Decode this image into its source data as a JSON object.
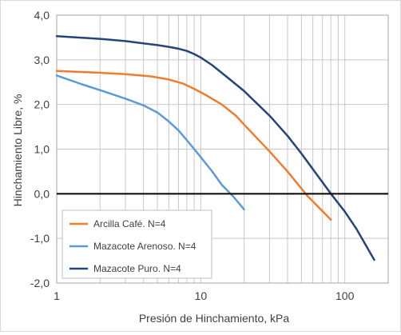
{
  "chart_data": {
    "type": "line",
    "xlabel": "Presión de Hinchamiento, kPa",
    "ylabel": "Hinchamiento Libre, %",
    "xscale": "log",
    "xlim": [
      1,
      200
    ],
    "ylim": [
      -2.0,
      4.0
    ],
    "xticks": [
      1,
      10,
      100
    ],
    "xtick_labels": [
      "1",
      "10",
      "100"
    ],
    "yticks": [
      -2.0,
      -1.0,
      0.0,
      1.0,
      2.0,
      3.0,
      4.0
    ],
    "ytick_labels": [
      "-2,0",
      "-1,0",
      "0,0",
      "1,0",
      "2,0",
      "3,0",
      "4,0"
    ],
    "grid": true,
    "zero_line": true,
    "legend_position": "bottom-left",
    "series": [
      {
        "name": "Arcilla Café. N=4",
        "color": "#ed7d31",
        "x": [
          1,
          2,
          3,
          4.5,
          6,
          7.5,
          9,
          11,
          14,
          17.5,
          20,
          30,
          40,
          55,
          80
        ],
        "y": [
          2.75,
          2.71,
          2.68,
          2.63,
          2.56,
          2.47,
          2.35,
          2.2,
          2.0,
          1.75,
          1.55,
          0.95,
          0.5,
          -0.05,
          -0.58
        ]
      },
      {
        "name": "Mazacote Arenoso. N=4",
        "color": "#5b9bd5",
        "x": [
          1,
          1.5,
          2,
          3,
          4,
          5,
          6,
          7,
          8,
          9,
          10,
          12,
          14,
          17,
          20
        ],
        "y": [
          2.65,
          2.45,
          2.32,
          2.13,
          1.98,
          1.82,
          1.62,
          1.42,
          1.2,
          1.0,
          0.82,
          0.5,
          0.2,
          -0.08,
          -0.35
        ]
      },
      {
        "name": "Mazacote Puro. N=4",
        "color": "#264478",
        "x": [
          1,
          2,
          3,
          4,
          5,
          6,
          7,
          8,
          9,
          10,
          12,
          15,
          20,
          30,
          40,
          50,
          60,
          80,
          100,
          120,
          160
        ],
        "y": [
          3.53,
          3.47,
          3.42,
          3.37,
          3.33,
          3.29,
          3.25,
          3.2,
          3.13,
          3.05,
          2.88,
          2.63,
          2.3,
          1.75,
          1.3,
          0.9,
          0.55,
          0.0,
          -0.4,
          -0.78,
          -1.48
        ]
      }
    ]
  }
}
